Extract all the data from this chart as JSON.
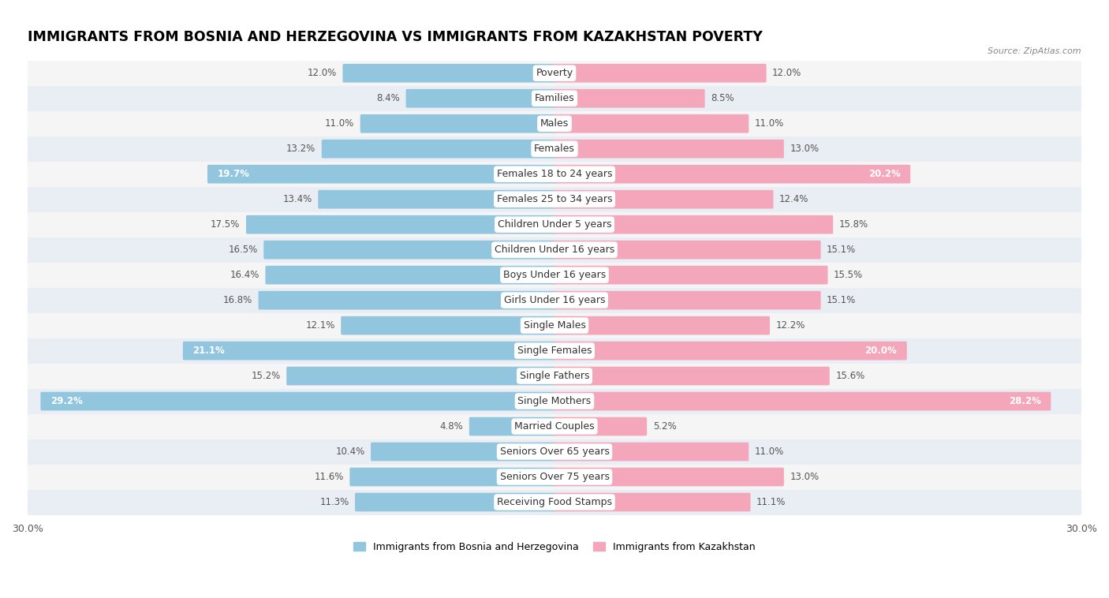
{
  "title": "IMMIGRANTS FROM BOSNIA AND HERZEGOVINA VS IMMIGRANTS FROM KAZAKHSTAN POVERTY",
  "source": "Source: ZipAtlas.com",
  "categories": [
    "Poverty",
    "Families",
    "Males",
    "Females",
    "Females 18 to 24 years",
    "Females 25 to 34 years",
    "Children Under 5 years",
    "Children Under 16 years",
    "Boys Under 16 years",
    "Girls Under 16 years",
    "Single Males",
    "Single Females",
    "Single Fathers",
    "Single Mothers",
    "Married Couples",
    "Seniors Over 65 years",
    "Seniors Over 75 years",
    "Receiving Food Stamps"
  ],
  "bosnia_values": [
    12.0,
    8.4,
    11.0,
    13.2,
    19.7,
    13.4,
    17.5,
    16.5,
    16.4,
    16.8,
    12.1,
    21.1,
    15.2,
    29.2,
    4.8,
    10.4,
    11.6,
    11.3
  ],
  "kazakhstan_values": [
    12.0,
    8.5,
    11.0,
    13.0,
    20.2,
    12.4,
    15.8,
    15.1,
    15.5,
    15.1,
    12.2,
    20.0,
    15.6,
    28.2,
    5.2,
    11.0,
    13.0,
    11.1
  ],
  "bosnia_color": "#92c5de",
  "kazakhstan_color": "#f4a6ba",
  "background_color": "#ffffff",
  "row_alt_color": "#e8eef4",
  "row_main_color": "#f5f5f5",
  "xlim": 30.0,
  "legend_bosnia": "Immigrants from Bosnia and Herzegovina",
  "legend_kazakhstan": "Immigrants from Kazakhstan",
  "title_fontsize": 12.5,
  "label_fontsize": 9,
  "value_fontsize": 8.5,
  "inside_label_threshold": 18.0
}
